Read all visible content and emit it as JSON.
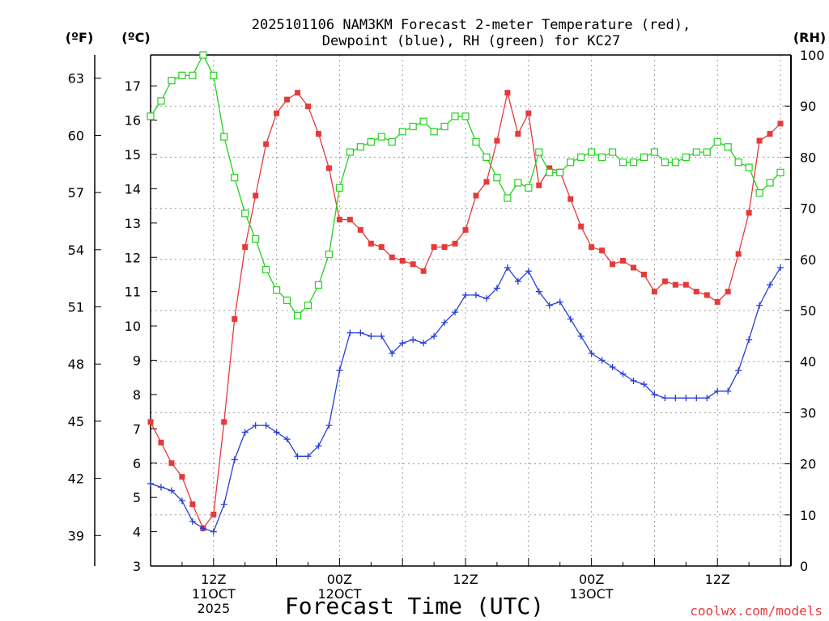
{
  "chart_data": {
    "type": "line",
    "title_line1": "2025101106 NAM3KM Forecast 2-meter Temperature (red),",
    "title_line2": "Dewpoint (blue), RH (green) for KC27",
    "xlabel": "Forecast Time (UTC)",
    "credit": "coolwx.com/models",
    "left_unit_f": "(ºF)",
    "left_unit_c": "(ºC)",
    "right_unit": "(RH)",
    "x_range": [
      6,
      67
    ],
    "celsius_range": [
      3,
      17.9
    ],
    "rh_range": [
      0,
      100
    ],
    "celsius_ticks": [
      "3",
      "4",
      "5",
      "6",
      "7",
      "8",
      "9",
      "10",
      "11",
      "12",
      "13",
      "14",
      "15",
      "16",
      "17"
    ],
    "fahrenheit_ticks": [
      "39",
      "42",
      "45",
      "48",
      "51",
      "54",
      "57",
      "60",
      "63"
    ],
    "rh_ticks": [
      "0",
      "10",
      "20",
      "30",
      "40",
      "50",
      "60",
      "70",
      "80",
      "90",
      "100"
    ],
    "x_ticks": [
      {
        "x": 12,
        "lines": [
          "12Z",
          "11OCT",
          "2025"
        ]
      },
      {
        "x": 24,
        "lines": [
          "00Z",
          "12OCT"
        ]
      },
      {
        "x": 36,
        "lines": [
          "12Z"
        ]
      },
      {
        "x": 48,
        "lines": [
          "00Z",
          "13OCT"
        ]
      },
      {
        "x": 60,
        "lines": [
          "12Z"
        ]
      }
    ],
    "series": [
      {
        "key": "temperature",
        "color": "#e63a3a",
        "marker": "filled-square",
        "values": [
          7.2,
          6.6,
          6.0,
          5.6,
          4.8,
          4.1,
          4.5,
          7.2,
          10.2,
          12.3,
          13.8,
          15.3,
          16.2,
          16.6,
          16.8,
          16.4,
          15.6,
          14.6,
          13.1,
          13.1,
          12.8,
          12.4,
          12.3,
          12.0,
          11.9,
          11.8,
          11.6,
          12.3,
          12.3,
          12.4,
          12.8,
          13.8,
          14.2,
          15.4,
          16.8,
          15.6,
          16.2,
          14.1,
          14.6,
          14.5,
          13.7,
          12.9,
          12.3,
          12.2,
          11.8,
          11.9,
          11.7,
          11.5,
          11.0,
          11.3,
          11.2,
          11.2,
          11.0,
          10.9,
          10.7,
          11.0,
          12.1,
          13.3,
          15.4,
          15.6,
          15.9
        ]
      },
      {
        "key": "dewpoint",
        "color": "#2a3fd6",
        "marker": "plus",
        "values": [
          5.4,
          5.3,
          5.2,
          4.9,
          4.3,
          4.1,
          4.0,
          4.8,
          6.1,
          6.9,
          7.1,
          7.1,
          6.9,
          6.7,
          6.2,
          6.2,
          6.5,
          7.1,
          8.7,
          9.8,
          9.8,
          9.7,
          9.7,
          9.2,
          9.5,
          9.6,
          9.5,
          9.7,
          10.1,
          10.4,
          10.9,
          10.9,
          10.8,
          11.1,
          11.7,
          11.3,
          11.6,
          11.0,
          10.6,
          10.7,
          10.2,
          9.7,
          9.2,
          9.0,
          8.8,
          8.6,
          8.4,
          8.3,
          8.0,
          7.9,
          7.9,
          7.9,
          7.9,
          7.9,
          8.1,
          8.1,
          8.7,
          9.6,
          10.6,
          11.2,
          11.7
        ]
      },
      {
        "key": "rh",
        "color": "#23d11f",
        "marker": "open-square",
        "values": [
          88,
          91,
          95,
          96,
          96,
          100,
          96,
          84,
          76,
          69,
          64,
          58,
          54,
          52,
          49,
          51,
          55,
          61,
          74,
          81,
          82,
          83,
          84,
          83,
          85,
          86,
          87,
          85,
          86,
          88,
          88,
          83,
          80,
          76,
          72,
          75,
          74,
          81,
          77,
          77,
          79,
          80,
          81,
          80,
          81,
          79,
          79,
          80,
          81,
          79,
          79,
          80,
          81,
          81,
          83,
          82,
          79,
          78,
          73,
          75,
          77
        ]
      }
    ]
  }
}
